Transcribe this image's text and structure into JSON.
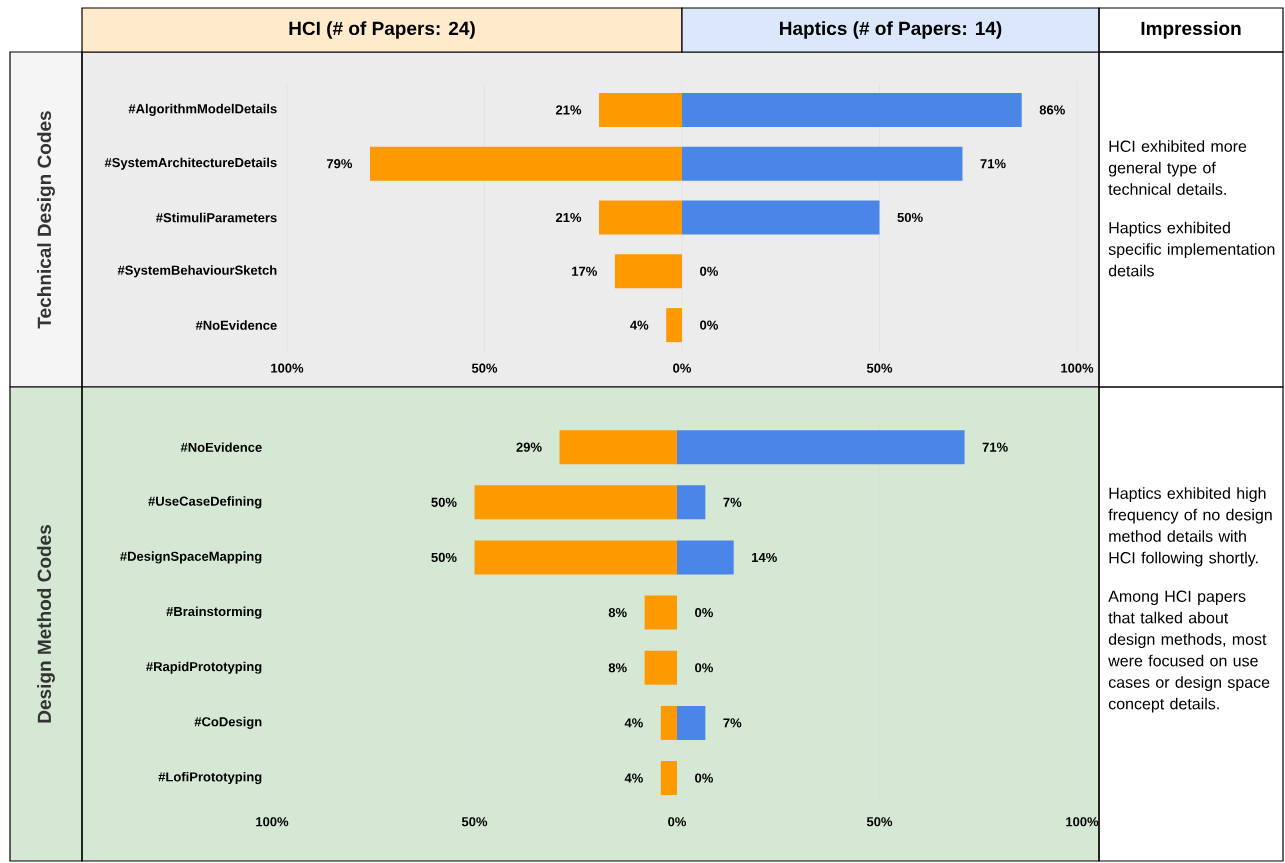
{
  "chart_data": [
    {
      "type": "bar",
      "orientation": "horizontal",
      "title": "HCI (# of Papers: 24)",
      "ylabel": "Technical Design Codes",
      "grid": "x",
      "categories": [
        "#AlgorithmModelDetails",
        "#SystemArchitectureDetails",
        "#StimuliParameters",
        "#SystemBehaviourSketch",
        "#NoEvidence"
      ],
      "values": [
        21,
        79,
        21,
        17,
        4
      ],
      "value_labels": [
        "21%",
        "79%",
        "21%",
        "17%",
        "4%"
      ],
      "color": "#ff9900",
      "xlim": [
        100,
        0
      ],
      "xticks": [
        {
          "value": 100,
          "label": "100%"
        },
        {
          "value": 50,
          "label": "50%"
        },
        {
          "value": 0,
          "label": "0%"
        }
      ]
    },
    {
      "type": "bar",
      "orientation": "horizontal",
      "title": "Haptics (# of Papers: 14)",
      "grid": "x",
      "categories": [
        null,
        null,
        null,
        null,
        null
      ],
      "values": [
        86,
        71,
        50,
        0,
        0
      ],
      "value_labels": [
        "86%",
        "71%",
        "50%",
        "0%",
        "0%"
      ],
      "color": "#4a86e8",
      "xlim": [
        0,
        100
      ],
      "xticks": [
        {
          "value": 50,
          "label": "50%"
        },
        {
          "value": 100,
          "label": "100%"
        }
      ],
      "annotations": [
        "Impression",
        "HCI exhibited more general type of technical details.",
        "Haptics exhibited specific implementation details"
      ]
    },
    {
      "type": "bar",
      "orientation": "horizontal",
      "ylabel": "Design Method Codes",
      "grid": "x",
      "categories": [
        "#NoEvidence",
        "#UseCaseDefining",
        "#DesignSpaceMapping",
        "#Brainstorming",
        "#RapidPrototyping",
        "#CoDesign",
        "#LofiPrototyping"
      ],
      "values": [
        29,
        50,
        50,
        8,
        8,
        4,
        4
      ],
      "value_labels": [
        "29%",
        "50%",
        "50%",
        "8%",
        "8%",
        "4%",
        "4%"
      ],
      "color": "#ff9900",
      "xlim": [
        100,
        0
      ],
      "xticks": [
        {
          "value": 100,
          "label": "100%"
        },
        {
          "value": 50,
          "label": "50%"
        },
        {
          "value": 0,
          "label": "0%"
        }
      ]
    },
    {
      "type": "bar",
      "orientation": "horizontal",
      "grid": "x",
      "categories": [
        null,
        null,
        null,
        null,
        null,
        null,
        null
      ],
      "values": [
        71,
        7,
        14,
        0,
        0,
        7,
        0
      ],
      "value_labels": [
        "71%",
        "7%",
        "14%",
        "0%",
        "0%",
        "7%",
        "0%"
      ],
      "color": "#4a86e8",
      "xlim": [
        0,
        100
      ],
      "xticks": [
        {
          "value": 50,
          "label": "50%"
        },
        {
          "value": 100,
          "label": "100%"
        }
      ],
      "annotations": [
        "Haptics exhibited high frequency of no design method details with HCI following shortly.",
        "Among HCI papers that talked about design methods, most were focused on use cases or design space concept details."
      ]
    }
  ]
}
